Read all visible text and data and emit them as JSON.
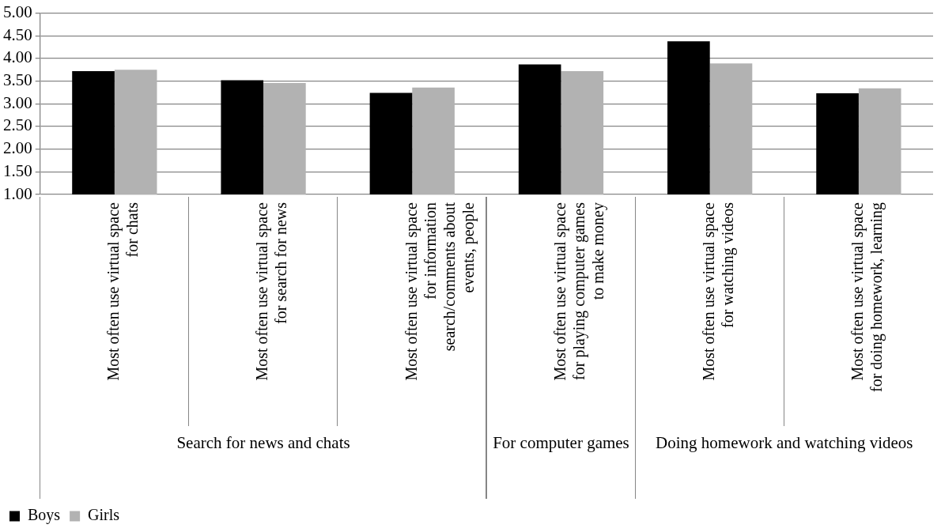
{
  "chart_data": {
    "type": "bar",
    "categories": [
      "Most often use virtual space for chats",
      "Most often use virtual space for search for news",
      "Most often use virtual space for information search/comments about events, people",
      "Most often use virtual space for playing computer games to make money",
      "Most often use virtual space for watching videos",
      "Most often use virtual space for doing homework, learning"
    ],
    "series": [
      {
        "name": "Boys",
        "color": "#000000",
        "values": [
          3.72,
          3.52,
          3.24,
          3.87,
          4.38,
          3.23
        ]
      },
      {
        "name": "Girls",
        "color": "#b2b2b2",
        "values": [
          3.75,
          3.46,
          3.36,
          3.72,
          3.89,
          3.34
        ]
      }
    ],
    "ylim": [
      1,
      5
    ],
    "yticks": [
      {
        "value": 1,
        "label": "1.00"
      },
      {
        "value": 1.5,
        "label": "1.50"
      },
      {
        "value": 2,
        "label": "2.00"
      },
      {
        "value": 2.5,
        "label": "2.50"
      },
      {
        "value": 3,
        "label": "3.00"
      },
      {
        "value": 3.5,
        "label": "3.50"
      },
      {
        "value": 4,
        "label": "4.00"
      },
      {
        "value": 4.5,
        "label": "4.50"
      },
      {
        "value": 5,
        "label": "5.00"
      }
    ],
    "grid": "y",
    "legend": "bottom left",
    "annotations": [
      "Search for news and chats",
      "For computer games",
      "Doing homework and watching videos"
    ]
  }
}
